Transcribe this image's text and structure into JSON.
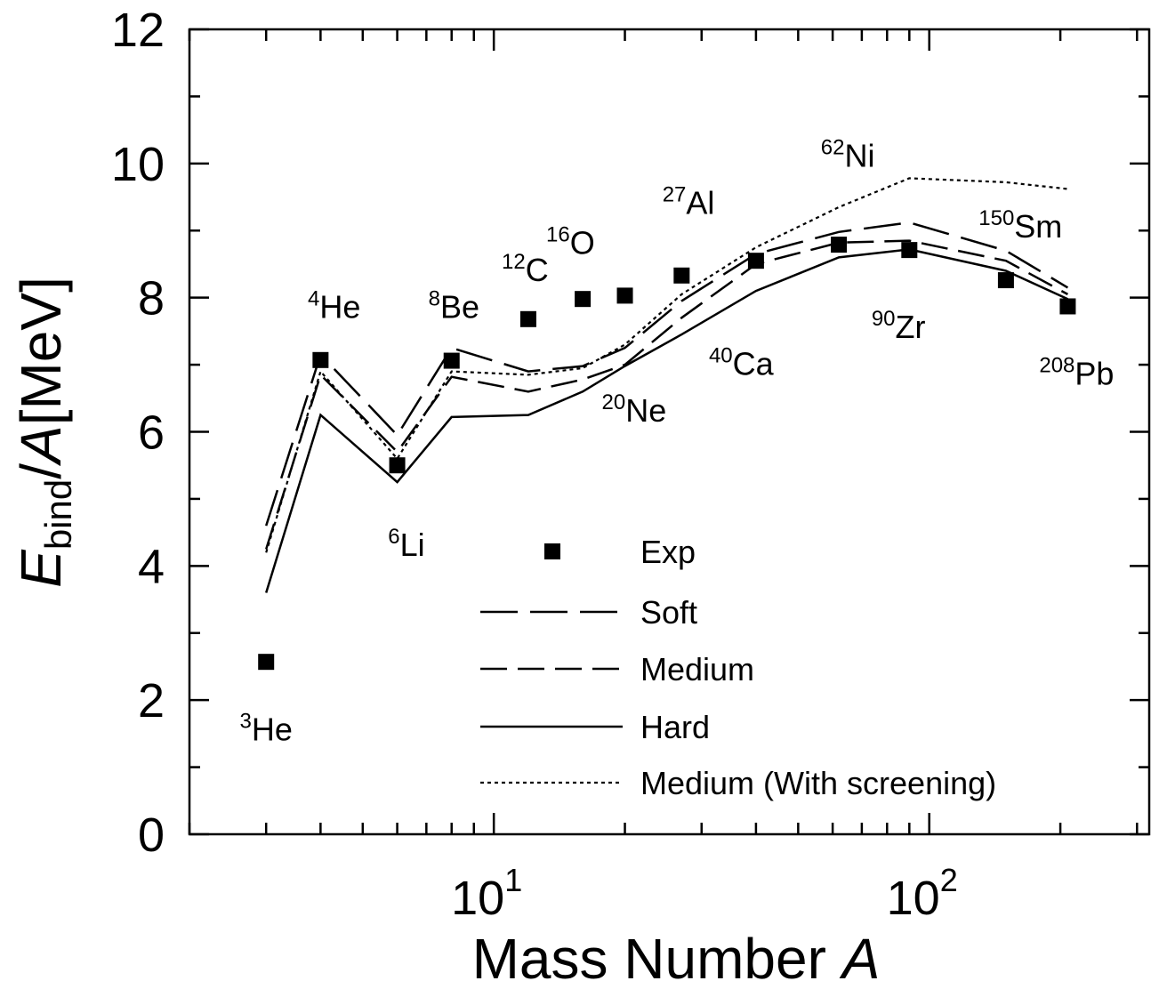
{
  "chart_data": {
    "type": "line",
    "xlabel": "Mass Number A",
    "ylabel": "Ebind/A[MeV]",
    "x_scale": "log",
    "xlim": [
      2,
      320
    ],
    "ylim": [
      0,
      12
    ],
    "y_ticks": [
      "0",
      "2",
      "4",
      "6",
      "8",
      "10",
      "12"
    ],
    "x_ticks": [
      {
        "value": 10,
        "base": "10",
        "exp": "1"
      },
      {
        "value": 100,
        "base": "10",
        "exp": "2"
      }
    ],
    "x": [
      3,
      4,
      6,
      8,
      12,
      16,
      20,
      27,
      40,
      62,
      90,
      150,
      208
    ],
    "series": [
      {
        "name": "Soft",
        "dash": "long",
        "values": [
          4.6,
          7.15,
          5.95,
          7.25,
          6.9,
          6.98,
          7.25,
          7.95,
          8.65,
          8.98,
          9.12,
          8.7,
          8.15
        ]
      },
      {
        "name": "Medium",
        "dash": "medium",
        "values": [
          4.25,
          6.85,
          5.7,
          6.82,
          6.6,
          6.78,
          7.0,
          7.7,
          8.5,
          8.82,
          8.85,
          8.55,
          8.05
        ]
      },
      {
        "name": "Hard",
        "dash": "solid",
        "values": [
          3.6,
          6.25,
          5.25,
          6.22,
          6.25,
          6.6,
          6.98,
          7.45,
          8.1,
          8.6,
          8.72,
          8.4,
          7.98
        ]
      },
      {
        "name": "Medium (With screening)",
        "dash": "dotted",
        "values": [
          4.2,
          6.9,
          5.6,
          6.9,
          6.85,
          6.95,
          7.3,
          8.05,
          8.75,
          9.35,
          9.78,
          9.72,
          9.62
        ]
      }
    ],
    "experiment": {
      "name": "Exp",
      "x": [
        3,
        4,
        6,
        8,
        12,
        16,
        20,
        27,
        40,
        62,
        90,
        150,
        208
      ],
      "values": [
        2.57,
        7.07,
        5.5,
        7.06,
        7.68,
        7.98,
        8.03,
        8.33,
        8.55,
        8.79,
        8.71,
        8.26,
        7.87
      ]
    },
    "nuclide_labels": [
      {
        "mass": "3",
        "element": "He",
        "x": 3,
        "y": 1.4
      },
      {
        "mass": "4",
        "element": "He",
        "x": 4.3,
        "y": 7.7
      },
      {
        "mass": "6",
        "element": "Li",
        "x": 6.3,
        "y": 4.15
      },
      {
        "mass": "8",
        "element": "Be",
        "x": 8.1,
        "y": 7.7
      },
      {
        "mass": "12",
        "element": "C",
        "x": 11.8,
        "y": 8.25
      },
      {
        "mass": "16",
        "element": "O",
        "x": 15.0,
        "y": 8.65
      },
      {
        "mass": "20",
        "element": "Ne",
        "x": 21.0,
        "y": 6.15
      },
      {
        "mass": "27",
        "element": "Al",
        "x": 28.0,
        "y": 9.25
      },
      {
        "mass": "40",
        "element": "Ca",
        "x": 37.0,
        "y": 6.85
      },
      {
        "mass": "62",
        "element": "Ni",
        "x": 65.0,
        "y": 9.95
      },
      {
        "mass": "90",
        "element": "Zr",
        "x": 85.0,
        "y": 7.4
      },
      {
        "mass": "150",
        "element": "Sm",
        "x": 162.0,
        "y": 8.9
      },
      {
        "mass": "208",
        "element": "Pb",
        "x": 218.0,
        "y": 6.7
      }
    ],
    "legend": {
      "placement": "bottom-center",
      "entries": [
        "Exp",
        "Soft",
        "Medium",
        "Hard",
        "Medium (With screening)"
      ]
    },
    "grid": false
  }
}
